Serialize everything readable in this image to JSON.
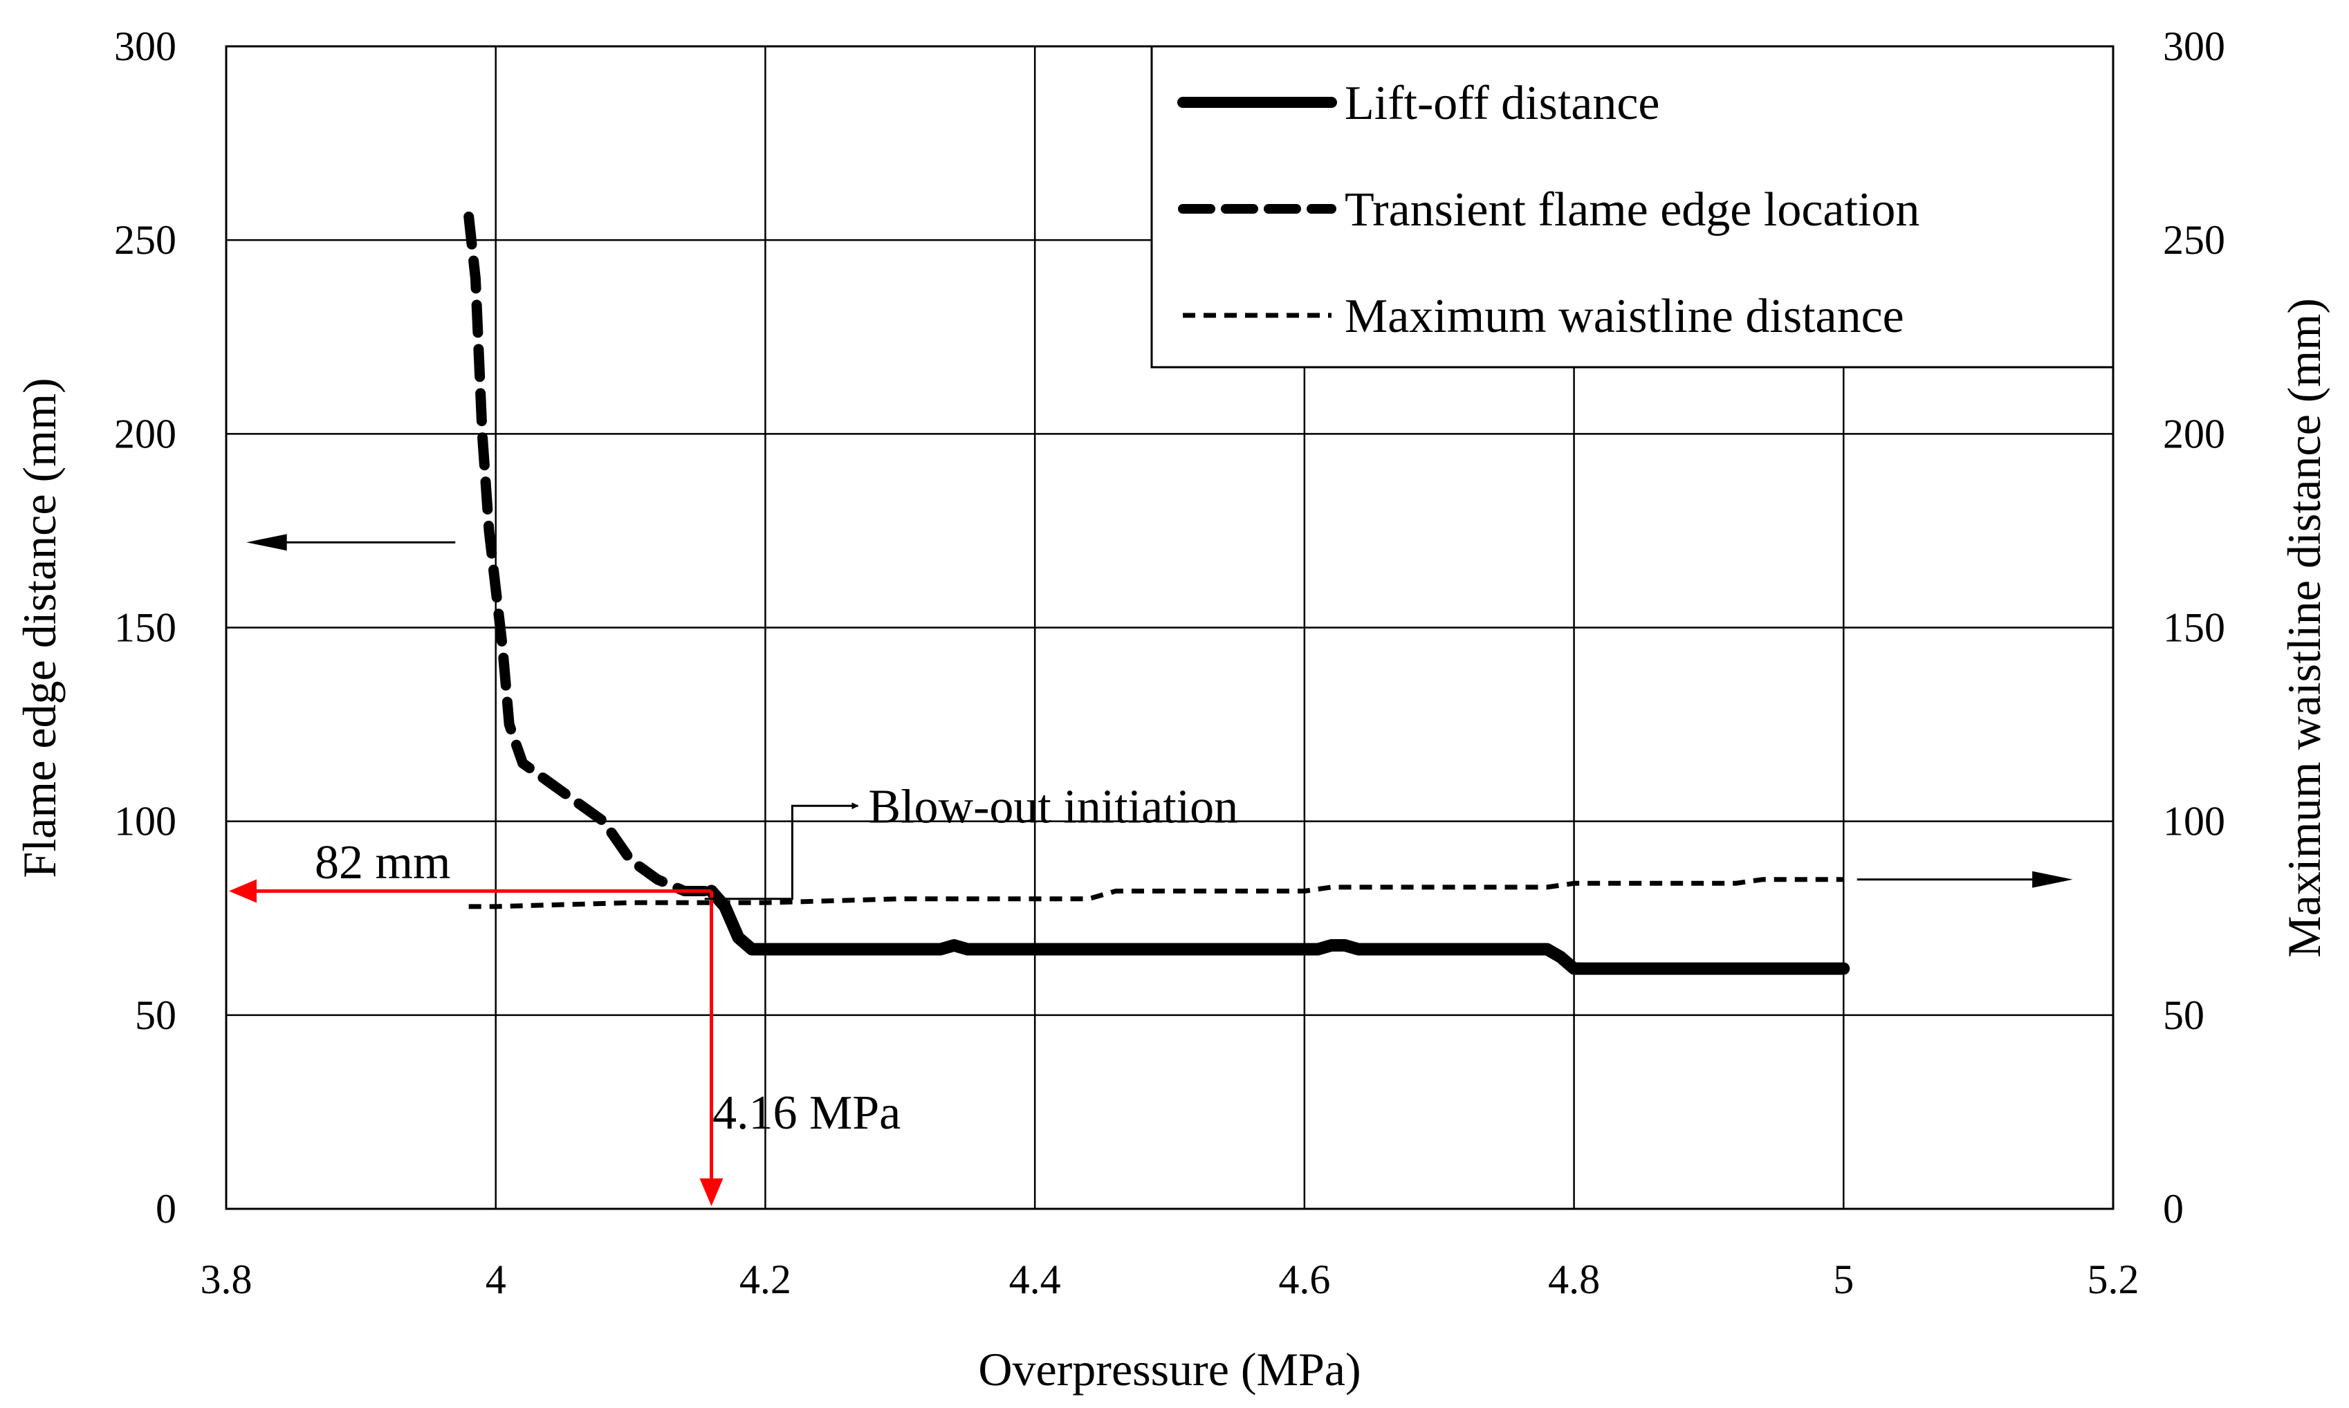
{
  "chart_data": {
    "type": "line",
    "title": "",
    "xlabel": "Overpressure (MPa)",
    "ylabel_left": "Flame edge distance (mm)",
    "ylabel_right": "Maximum waistline distance (mm)",
    "xlim": [
      3.8,
      5.2
    ],
    "ylim": [
      0,
      300
    ],
    "ylim_right": [
      0,
      300
    ],
    "x_ticks": [
      "3.8",
      "4",
      "4.2",
      "4.4",
      "4.6",
      "4.8",
      "5",
      "5.2"
    ],
    "y_ticks": [
      "0",
      "50",
      "100",
      "150",
      "200",
      "250",
      "300"
    ],
    "grid": true,
    "legend_position": "top-right",
    "series": [
      {
        "name": "Lift-off distance",
        "style": "solid",
        "axis": "left",
        "x": [
          4.16,
          4.17,
          4.18,
          4.19,
          4.2,
          4.3,
          4.33,
          4.34,
          4.35,
          4.4,
          4.5,
          4.6,
          4.61,
          4.62,
          4.63,
          4.64,
          4.7,
          4.77,
          4.78,
          4.79,
          4.8,
          4.81,
          4.9,
          5.0
        ],
        "y": [
          82,
          78,
          70,
          67,
          67,
          67,
          67,
          68,
          67,
          67,
          67,
          67,
          67,
          68,
          68,
          67,
          67,
          67,
          67,
          65,
          62,
          62,
          62,
          62
        ]
      },
      {
        "name": "Transient flame edge location",
        "style": "dashed",
        "axis": "left",
        "x": [
          3.98,
          3.985,
          3.99,
          3.995,
          4.0,
          4.005,
          4.01,
          4.015,
          4.02,
          4.04,
          4.06,
          4.08,
          4.09,
          4.1,
          4.12,
          4.14,
          4.16
        ],
        "y": [
          256,
          240,
          200,
          175,
          160,
          145,
          125,
          120,
          115,
          110,
          105,
          100,
          95,
          90,
          85,
          82,
          82
        ]
      },
      {
        "name": "Maximum waistline distance",
        "style": "dotted",
        "axis": "right",
        "x": [
          3.98,
          4.0,
          4.1,
          4.2,
          4.3,
          4.35,
          4.44,
          4.46,
          4.6,
          4.62,
          4.78,
          4.8,
          4.92,
          4.94,
          5.0
        ],
        "y": [
          78,
          78,
          79,
          79,
          80,
          80,
          80,
          82,
          82,
          83,
          83,
          84,
          84,
          85,
          85
        ]
      }
    ],
    "annotations": {
      "blowout_label": "Blow-out initiation",
      "distance_label": "82 mm",
      "pressure_label": "4.16 MPa",
      "marker_x": 4.16,
      "marker_y": 82
    },
    "colors": {
      "axis": "#000000",
      "grid": "#000000",
      "series": "#000000",
      "marker": "#ff0000"
    }
  }
}
